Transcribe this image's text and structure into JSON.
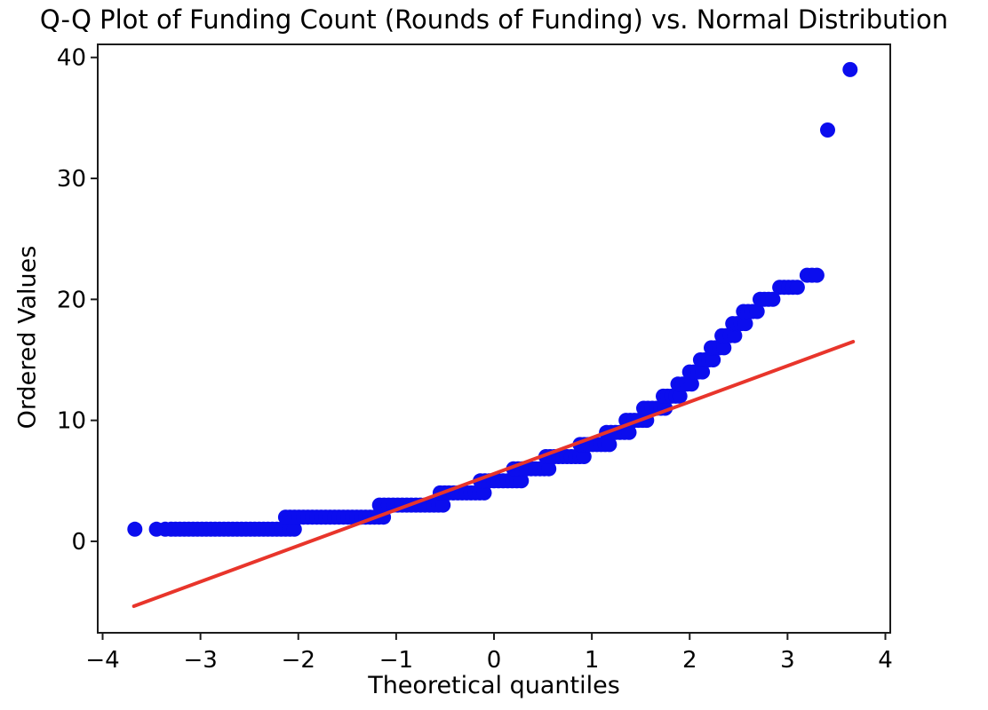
{
  "chart_data": {
    "type": "scatter",
    "subtype": "qq-plot",
    "title": "Q-Q Plot of Funding Count (Rounds of Funding) vs. Normal Distribution",
    "xlabel": "Theoretical quantiles",
    "ylabel": "Ordered Values",
    "x_ticks": [
      -4,
      -3,
      -2,
      -1,
      0,
      1,
      2,
      3,
      4
    ],
    "y_ticks": [
      0,
      10,
      20,
      30,
      40
    ],
    "xlim": [
      -4.05,
      4.05
    ],
    "ylim": [
      -7.56,
      41.08
    ],
    "grid": false,
    "legend": "none",
    "marker_color": "#0b0dee",
    "line_color": "#e8352b",
    "axis_color": "#1c1c1c",
    "marker_radius_px": 8.5,
    "series": [
      {
        "name": "sample-quantiles",
        "type": "run-scatter",
        "runs": [
          {
            "value": 1,
            "q_start": -3.3,
            "q_end": -2.04
          },
          {
            "value": 2,
            "q_start": -2.13,
            "q_end": -1.13
          },
          {
            "value": 3,
            "q_start": -1.17,
            "q_end": -0.52
          },
          {
            "value": 4,
            "q_start": -0.55,
            "q_end": -0.1
          },
          {
            "value": 5,
            "q_start": -0.14,
            "q_end": 0.28
          },
          {
            "value": 6,
            "q_start": 0.2,
            "q_end": 0.56
          },
          {
            "value": 7,
            "q_start": 0.53,
            "q_end": 0.92
          },
          {
            "value": 8,
            "q_start": 0.88,
            "q_end": 1.18
          },
          {
            "value": 9,
            "q_start": 1.15,
            "q_end": 1.38
          },
          {
            "value": 10,
            "q_start": 1.35,
            "q_end": 1.56
          },
          {
            "value": 11,
            "q_start": 1.53,
            "q_end": 1.75
          },
          {
            "value": 12,
            "q_start": 1.73,
            "q_end": 1.9
          },
          {
            "value": 13,
            "q_start": 1.88,
            "q_end": 2.02
          },
          {
            "value": 14,
            "q_start": 2.0,
            "q_end": 2.13
          },
          {
            "value": 15,
            "q_start": 2.11,
            "q_end": 2.24
          },
          {
            "value": 16,
            "q_start": 2.22,
            "q_end": 2.35
          },
          {
            "value": 17,
            "q_start": 2.33,
            "q_end": 2.46
          },
          {
            "value": 18,
            "q_start": 2.44,
            "q_end": 2.57
          },
          {
            "value": 19,
            "q_start": 2.55,
            "q_end": 2.69
          },
          {
            "value": 20,
            "q_start": 2.72,
            "q_end": 2.85
          },
          {
            "value": 21,
            "q_start": 2.92,
            "q_end": 3.1
          },
          {
            "value": 22,
            "q_start": 3.2,
            "q_end": 3.3
          }
        ],
        "isolated_points": [
          {
            "q": -3.67,
            "value": 1
          },
          {
            "q": -3.45,
            "value": 1
          },
          {
            "q": -3.36,
            "value": 1
          },
          {
            "q": 3.41,
            "value": 34
          },
          {
            "q": 3.64,
            "value": 39
          }
        ]
      },
      {
        "name": "fit-line",
        "type": "line",
        "x": [
          -3.68,
          3.67
        ],
        "y": [
          -5.36,
          16.5
        ]
      }
    ]
  }
}
